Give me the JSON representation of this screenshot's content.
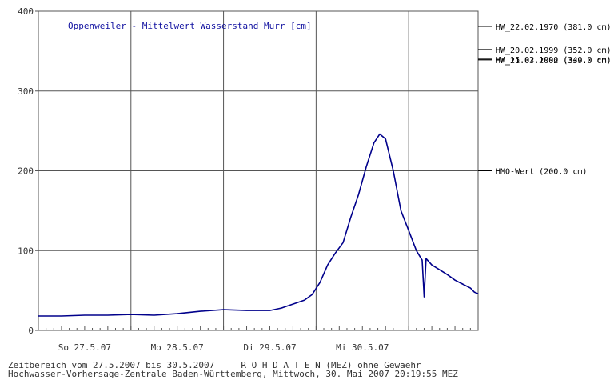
{
  "chart_data": {
    "type": "line",
    "title": "Oppenweiler - Mittelwert Wasserstand Murr [cm]",
    "ylim": [
      0,
      400
    ],
    "yticks": [
      0,
      100,
      200,
      300,
      400
    ],
    "xlim": [
      "2007-05-26T12:00",
      "2007-05-31T06:00"
    ],
    "xtick_labels": [
      {
        "label": "So 27.5.07",
        "at": "2007-05-27T00:00"
      },
      {
        "label": "Mo 28.5.07",
        "at": "2007-05-28T00:00"
      },
      {
        "label": "Di 29.5.07",
        "at": "2007-05-29T00:00"
      },
      {
        "label": "Mi 30.5.07",
        "at": "2007-05-30T00:00"
      }
    ],
    "x_gridlines": [
      "2007-05-27T12:00",
      "2007-05-28T12:00",
      "2007-05-29T12:00",
      "2007-05-30T12:00"
    ],
    "grid": true,
    "colors": {
      "series": "#00008b",
      "grid": "#555555",
      "title": "#1010a0"
    },
    "series": [
      {
        "points": [
          [
            "2007-05-26T12:00",
            18
          ],
          [
            "2007-05-26T18:00",
            18
          ],
          [
            "2007-05-27T00:00",
            19
          ],
          [
            "2007-05-27T06:00",
            19
          ],
          [
            "2007-05-27T12:00",
            20
          ],
          [
            "2007-05-27T18:00",
            19
          ],
          [
            "2007-05-28T00:00",
            21
          ],
          [
            "2007-05-28T06:00",
            24
          ],
          [
            "2007-05-28T12:00",
            26
          ],
          [
            "2007-05-28T18:00",
            25
          ],
          [
            "2007-05-29T00:00",
            25
          ],
          [
            "2007-05-29T03:00",
            28
          ],
          [
            "2007-05-29T06:00",
            33
          ],
          [
            "2007-05-29T09:00",
            38
          ],
          [
            "2007-05-29T11:00",
            45
          ],
          [
            "2007-05-29T13:00",
            60
          ],
          [
            "2007-05-29T15:00",
            82
          ],
          [
            "2007-05-29T17:00",
            97
          ],
          [
            "2007-05-29T19:00",
            110
          ],
          [
            "2007-05-29T21:00",
            142
          ],
          [
            "2007-05-29T23:00",
            170
          ],
          [
            "2007-05-30T01:00",
            205
          ],
          [
            "2007-05-30T03:00",
            235
          ],
          [
            "2007-05-30T04:30",
            246
          ],
          [
            "2007-05-30T06:00",
            240
          ],
          [
            "2007-05-30T08:00",
            200
          ],
          [
            "2007-05-30T10:00",
            150
          ],
          [
            "2007-05-30T12:00",
            125
          ],
          [
            "2007-05-30T14:00",
            100
          ],
          [
            "2007-05-30T15:30",
            88
          ],
          [
            "2007-05-30T16:00",
            42
          ],
          [
            "2007-05-30T16:30",
            90
          ],
          [
            "2007-05-30T18:00",
            82
          ],
          [
            "2007-05-30T20:00",
            76
          ],
          [
            "2007-05-30T22:00",
            70
          ],
          [
            "2007-05-31T00:00",
            63
          ],
          [
            "2007-05-31T02:00",
            58
          ],
          [
            "2007-05-31T04:00",
            53
          ],
          [
            "2007-05-31T05:00",
            48
          ],
          [
            "2007-05-31T06:00",
            46
          ]
        ]
      }
    ],
    "reference_lines": [
      {
        "label": "HW_22.02.1970 (381.0 cm)",
        "value": 381.0
      },
      {
        "label": "HW_20.02.1999 (352.0 cm)",
        "value": 352.0
      },
      {
        "label": "HW_15.02.1990 (340.0 cm)",
        "value": 340.0
      },
      {
        "label": "HW_21.03.2002 (339.0 cm)",
        "value": 339.0
      },
      {
        "label": "HMO-Wert (200.0 cm)",
        "value": 200.0
      }
    ]
  },
  "footer": {
    "line1": "Zeitbereich vom 27.5.2007 bis 30.5.2007     R O H D A T E N (MEZ) ohne Gewaehr",
    "line2": "Hochwasser-Vorhersage-Zentrale Baden-Württemberg, Mittwoch, 30. Mai 2007 20:19:55 MEZ"
  }
}
